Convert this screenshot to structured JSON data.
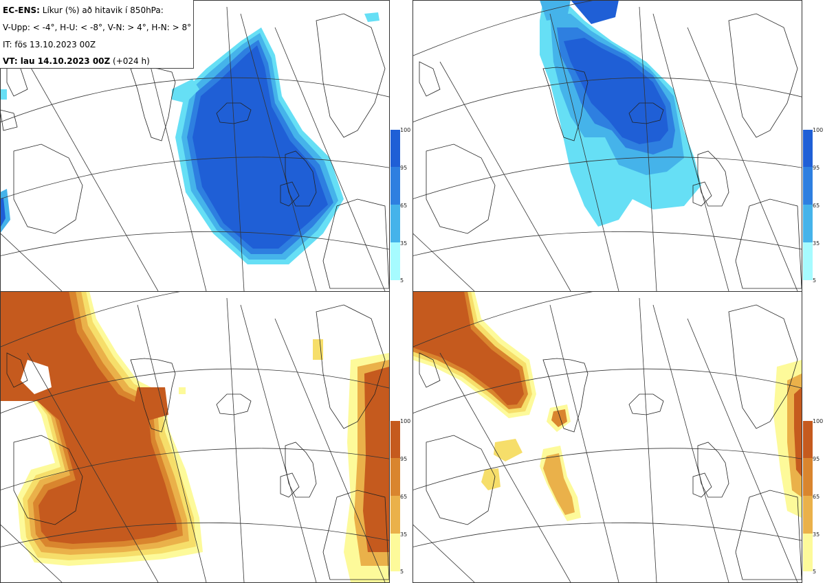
{
  "header": {
    "model_label": "EC-ENS:",
    "title_rest": "Líkur (%) að hitavik í 850hPa:",
    "thresholds": "V-Upp: < -4°, H-U: < -8°, V-N: > 4°, H-N: > 8°",
    "init_time": "IT: fös 13.10.2023 00Z",
    "valid_label": "VT: lau 14.10.2023 00Z",
    "valid_lead": "(+024 h)"
  },
  "panels": [
    {
      "id": "v-upp",
      "colormap": "blue"
    },
    {
      "id": "h-u",
      "colormap": "blue"
    },
    {
      "id": "v-n",
      "colormap": "orange"
    },
    {
      "id": "h-n",
      "colormap": "orange"
    }
  ],
  "colorbar": {
    "ticks": [
      "100",
      "95",
      "65",
      "35",
      "5"
    ],
    "blue_colors": [
      "#1f5fd6",
      "#2e7fe0",
      "#45b3ea",
      "#66dff5",
      "#a6fbff"
    ],
    "orange_colors": [
      "#c55a1e",
      "#d9852e",
      "#eab14a",
      "#f6de6a",
      "#fdfa9a"
    ]
  },
  "colors": {
    "coast": "#222222",
    "grid": "#333333",
    "border": "#333333"
  }
}
